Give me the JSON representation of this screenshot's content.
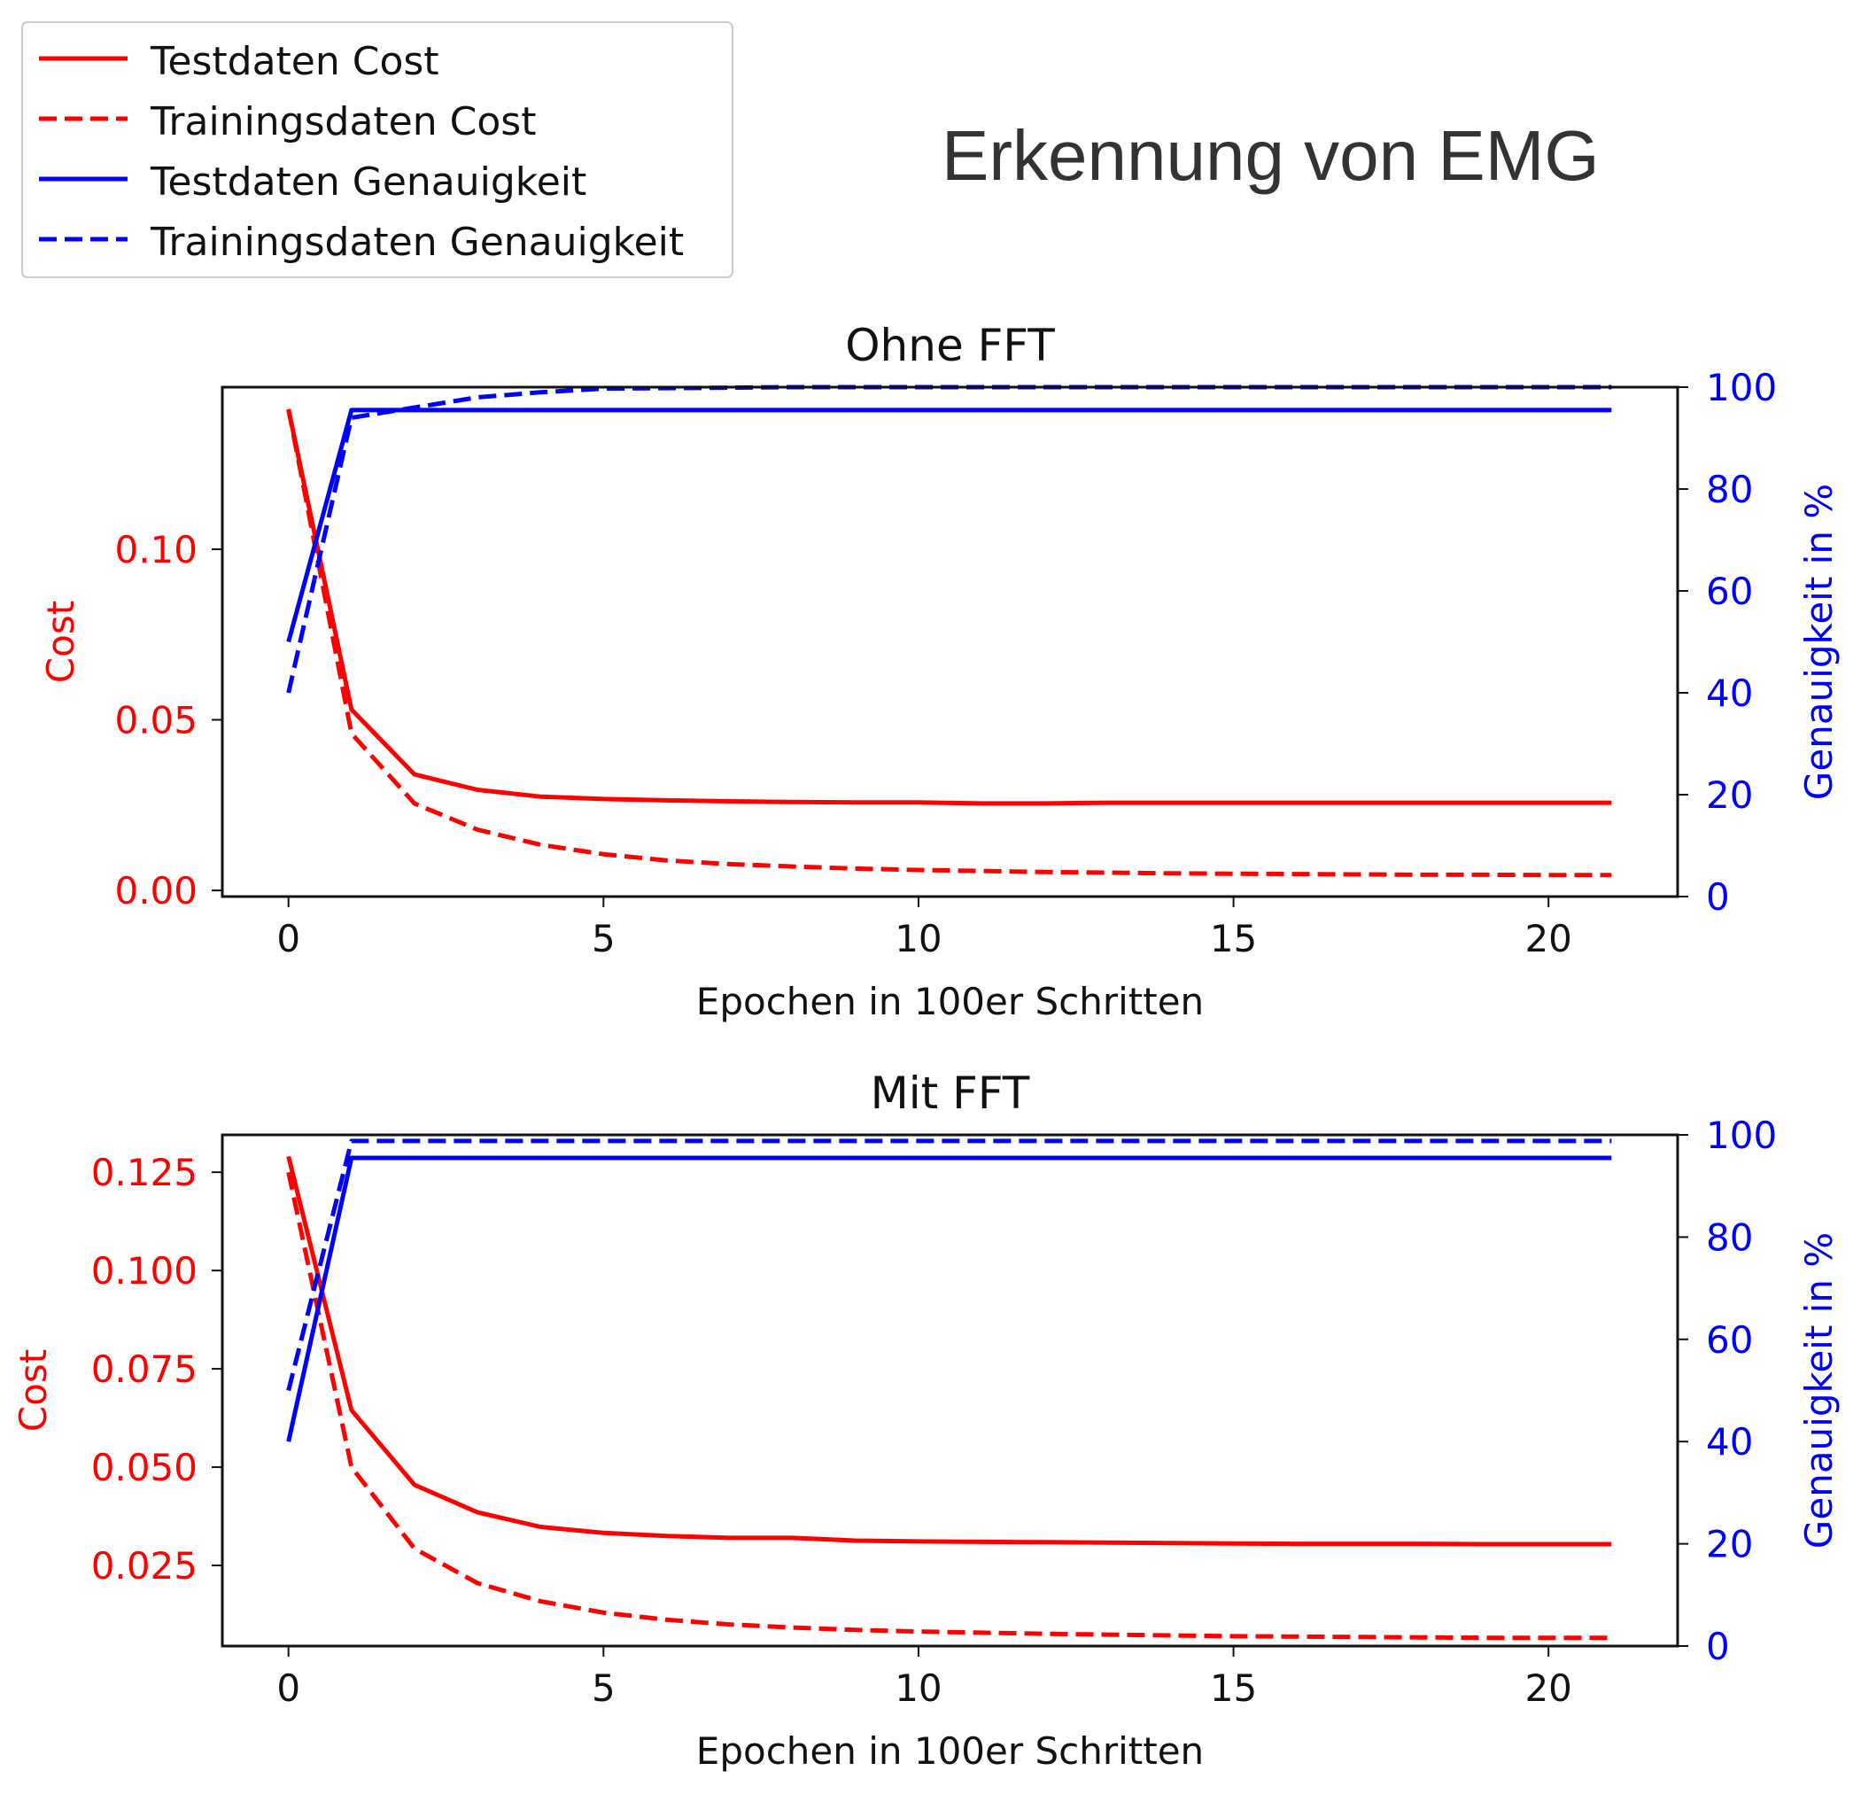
{
  "title": "Erkennung von EMG",
  "legend": {
    "placement": "top-left",
    "items": [
      {
        "label": "Testdaten Cost",
        "color": "#ff0000",
        "style": "solid"
      },
      {
        "label": "Trainingsdaten Cost",
        "color": "#ff0000",
        "style": "dashed"
      },
      {
        "label": "Testdaten Genauigkeit",
        "color": "#0000ff",
        "style": "solid"
      },
      {
        "label": "Trainingsdaten Genauigkeit",
        "color": "#0000ff",
        "style": "dashed"
      }
    ]
  },
  "chart_data": [
    {
      "type": "line",
      "title": "Ohne FFT",
      "xlabel": "Epochen in 100er Schritten",
      "ylabel": "Cost",
      "y2label": "Genauigkeit in %",
      "xlim": [
        -1.05,
        22.05
      ],
      "ylim": [
        -0.0018,
        0.1475
      ],
      "y2lim": [
        0,
        100
      ],
      "xticks": [
        0,
        5,
        10,
        15,
        20
      ],
      "yticks": [
        0.0,
        0.05,
        0.1
      ],
      "ytick_labels": [
        "0.00",
        "0.05",
        "0.10"
      ],
      "y2ticks": [
        0,
        20,
        40,
        60,
        80,
        100
      ],
      "x": [
        0,
        1,
        2,
        3,
        4,
        5,
        6,
        7,
        8,
        9,
        10,
        11,
        12,
        13,
        14,
        15,
        16,
        17,
        18,
        19,
        20,
        21
      ],
      "series": [
        {
          "name": "Testdaten Cost",
          "axis": "left",
          "color": "#ff0000",
          "style": "solid",
          "values": [
            0.141,
            0.053,
            0.034,
            0.0295,
            0.0275,
            0.0268,
            0.0264,
            0.0261,
            0.0259,
            0.0258,
            0.0258,
            0.0255,
            0.0255,
            0.0257,
            0.0257,
            0.0257,
            0.0257,
            0.0257,
            0.0257,
            0.0257,
            0.0257,
            0.0257
          ]
        },
        {
          "name": "Trainingsdaten Cost",
          "axis": "left",
          "color": "#ff0000",
          "style": "dashed",
          "values": [
            0.141,
            0.046,
            0.0255,
            0.0178,
            0.0134,
            0.0106,
            0.0088,
            0.0077,
            0.007,
            0.0064,
            0.006,
            0.0057,
            0.0054,
            0.0052,
            0.005,
            0.0049,
            0.0048,
            0.0047,
            0.0046,
            0.0046,
            0.0045,
            0.0045
          ]
        },
        {
          "name": "Testdaten Genauigkeit",
          "axis": "right",
          "color": "#0000ff",
          "style": "solid",
          "values": [
            50,
            95.5,
            95.5,
            95.5,
            95.5,
            95.5,
            95.5,
            95.5,
            95.5,
            95.5,
            95.5,
            95.5,
            95.5,
            95.5,
            95.5,
            95.5,
            95.5,
            95.5,
            95.5,
            95.5,
            95.5,
            95.5
          ]
        },
        {
          "name": "Trainingsdaten Genauigkeit",
          "axis": "right",
          "color": "#0000ff",
          "style": "dashed",
          "values": [
            40,
            94,
            96,
            98,
            99,
            99.7,
            99.8,
            99.9,
            100,
            100,
            100,
            100,
            100,
            100,
            100,
            100,
            100,
            100,
            100,
            100,
            100,
            100
          ]
        }
      ]
    },
    {
      "type": "line",
      "title": "Mit FFT",
      "xlabel": "Epochen in 100er Schritten",
      "ylabel": "Cost",
      "y2label": "Genauigkeit in %",
      "xlim": [
        -1.05,
        22.05
      ],
      "ylim": [
        0.0045,
        0.1345
      ],
      "y2lim": [
        0,
        100
      ],
      "xticks": [
        0,
        5,
        10,
        15,
        20
      ],
      "yticks": [
        0.025,
        0.05,
        0.075,
        0.1,
        0.125
      ],
      "ytick_labels": [
        "0.025",
        "0.050",
        "0.075",
        "0.100",
        "0.125"
      ],
      "y2ticks": [
        0,
        20,
        40,
        60,
        80,
        100
      ],
      "x": [
        0,
        1,
        2,
        3,
        4,
        5,
        6,
        7,
        8,
        9,
        10,
        11,
        12,
        13,
        14,
        15,
        16,
        17,
        18,
        19,
        20,
        21
      ],
      "series": [
        {
          "name": "Testdaten Cost",
          "axis": "left",
          "color": "#ff0000",
          "style": "solid",
          "values": [
            0.129,
            0.0645,
            0.0455,
            0.0385,
            0.0348,
            0.0333,
            0.0325,
            0.032,
            0.032,
            0.0313,
            0.0311,
            0.031,
            0.0309,
            0.0308,
            0.0307,
            0.0306,
            0.0305,
            0.0305,
            0.0305,
            0.0304,
            0.0304,
            0.0304
          ]
        },
        {
          "name": "Trainingsdaten Cost",
          "axis": "left",
          "color": "#ff0000",
          "style": "dashed",
          "values": [
            0.125,
            0.05,
            0.0293,
            0.0205,
            0.0159,
            0.013,
            0.0112,
            0.01,
            0.0092,
            0.0086,
            0.0082,
            0.0079,
            0.0076,
            0.0074,
            0.0072,
            0.007,
            0.0069,
            0.0068,
            0.0067,
            0.0066,
            0.0066,
            0.0066
          ]
        },
        {
          "name": "Testdaten Genauigkeit",
          "axis": "right",
          "color": "#0000ff",
          "style": "solid",
          "values": [
            40,
            95.5,
            95.5,
            95.5,
            95.5,
            95.5,
            95.5,
            95.5,
            95.5,
            95.5,
            95.5,
            95.5,
            95.5,
            95.5,
            95.5,
            95.5,
            95.5,
            95.5,
            95.5,
            95.5,
            95.5,
            95.5
          ]
        },
        {
          "name": "Trainingsdaten Genauigkeit",
          "axis": "right",
          "color": "#0000ff",
          "style": "dashed",
          "values": [
            50,
            98.8,
            98.8,
            98.8,
            98.8,
            98.8,
            98.8,
            98.8,
            98.8,
            98.8,
            98.8,
            98.8,
            98.8,
            98.8,
            98.8,
            98.8,
            98.8,
            98.8,
            98.8,
            98.8,
            98.8,
            98.8
          ]
        }
      ]
    }
  ]
}
